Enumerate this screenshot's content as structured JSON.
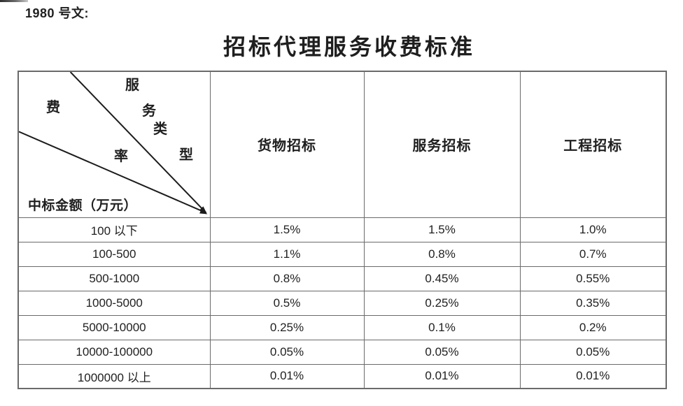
{
  "page": {
    "doc_number": "1980 号文:",
    "title": "招标代理服务收费标准"
  },
  "table": {
    "corner": {
      "fee_char": "费",
      "rate_char": "率",
      "type_chars": [
        "服",
        "务",
        "类",
        "型"
      ],
      "amount_label": "中标金额（万元）"
    },
    "columns": [
      "货物招标",
      "服务招标",
      "工程招标"
    ],
    "rows": [
      {
        "range": "100 以下",
        "values": [
          "1.5%",
          "1.5%",
          "1.0%"
        ]
      },
      {
        "range": "100-500",
        "values": [
          "1.1%",
          "0.8%",
          "0.7%"
        ]
      },
      {
        "range": "500-1000",
        "values": [
          "0.8%",
          "0.45%",
          "0.55%"
        ]
      },
      {
        "range": "1000-5000",
        "values": [
          "0.5%",
          "0.25%",
          "0.35%"
        ]
      },
      {
        "range": "5000-10000",
        "values": [
          "0.25%",
          "0.1%",
          "0.2%"
        ]
      },
      {
        "range": "10000-100000",
        "values": [
          "0.05%",
          "0.05%",
          "0.05%"
        ]
      },
      {
        "range": "1000000 以上",
        "values": [
          "0.01%",
          "0.01%",
          "0.01%"
        ]
      }
    ]
  },
  "colors": {
    "border": "#6a6a6a",
    "text": "#1f1f1f",
    "diagonal_line": "#1c1c1c"
  }
}
